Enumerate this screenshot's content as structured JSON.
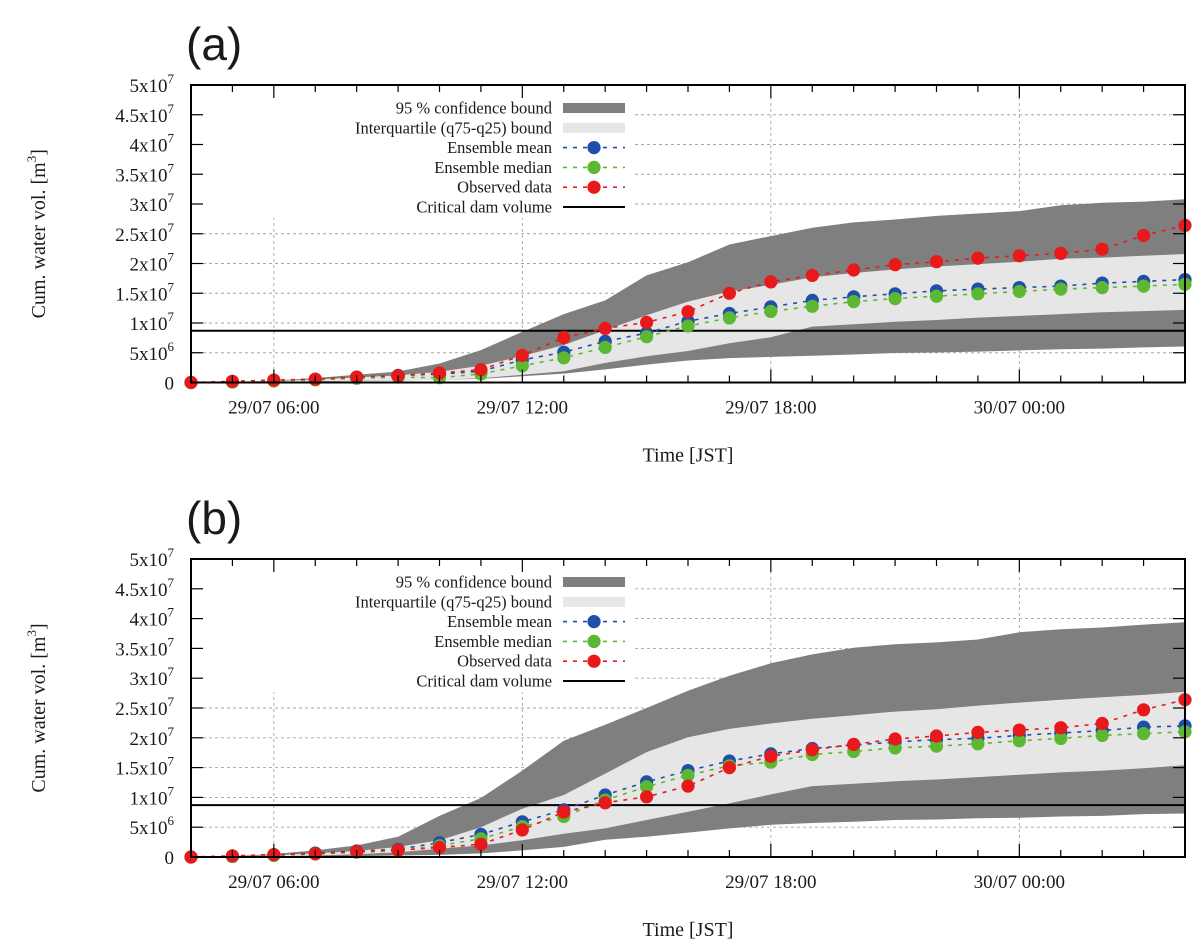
{
  "figure": {
    "panels": [
      "(a)",
      "(b)"
    ]
  },
  "chart_data": [
    {
      "type": "line",
      "panel_label": "(a)",
      "title": "",
      "xlabel": "Time [JST]",
      "ylabel": "Cum. water vol. [m^3]",
      "ylabel_base": "Cum. water vol. [m",
      "ylabel_sup": "3",
      "ylabel_end": "]",
      "x_start": "29/07 04:00",
      "x_step_hours": 1,
      "xlim_hours": [
        0,
        24
      ],
      "xticks": [
        {
          "hour": 2,
          "label": "29/07 06:00"
        },
        {
          "hour": 8,
          "label": "29/07 12:00"
        },
        {
          "hour": 14,
          "label": "29/07 18:00"
        },
        {
          "hour": 20,
          "label": "30/07 00:00"
        }
      ],
      "ylim": [
        0,
        50000000
      ],
      "yticks": [
        {
          "value": 0,
          "mant": "0",
          "exp": ""
        },
        {
          "value": 5000000,
          "mant": "5x10",
          "exp": "6"
        },
        {
          "value": 10000000,
          "mant": "1x10",
          "exp": "7"
        },
        {
          "value": 15000000,
          "mant": "1.5x10",
          "exp": "7"
        },
        {
          "value": 20000000,
          "mant": "2x10",
          "exp": "7"
        },
        {
          "value": 25000000,
          "mant": "2.5x10",
          "exp": "7"
        },
        {
          "value": 30000000,
          "mant": "3x10",
          "exp": "7"
        },
        {
          "value": 35000000,
          "mant": "3.5x10",
          "exp": "7"
        },
        {
          "value": 40000000,
          "mant": "4x10",
          "exp": "7"
        },
        {
          "value": 45000000,
          "mant": "4.5x10",
          "exp": "7"
        },
        {
          "value": 50000000,
          "mant": "5x10",
          "exp": "7"
        }
      ],
      "grid": true,
      "legend_position": "top-left",
      "legend": [
        {
          "label": "95 % confidence bound",
          "kind": "band95"
        },
        {
          "label": "Interquartile (q75-q25) bound",
          "kind": "bandIQR"
        },
        {
          "label": "Ensemble mean",
          "kind": "mean"
        },
        {
          "label": "Ensemble median",
          "kind": "median"
        },
        {
          "label": "Observed data",
          "kind": "observed"
        },
        {
          "label": "Critical dam volume",
          "kind": "critical"
        }
      ],
      "critical_volume": 8700000,
      "bands": {
        "ci95_upper": [
          0,
          100000,
          300000,
          750000,
          1300000,
          1850000,
          3200000,
          5450000,
          8500000,
          11500000,
          13800000,
          18000000,
          20200000,
          23200000,
          24600000,
          26000000,
          26900000,
          27400000,
          28000000,
          28400000,
          28800000,
          29800000,
          30200000,
          30400000,
          30800000
        ],
        "ci95_lower": [
          0,
          0,
          50000,
          150000,
          250000,
          350000,
          450000,
          600000,
          1050000,
          1500000,
          2200000,
          3000000,
          3700000,
          4100000,
          4300000,
          4500000,
          4700000,
          4950000,
          5050000,
          5200000,
          5400000,
          5600000,
          5700000,
          5900000,
          6050000
        ],
        "iqr_upper": [
          0,
          60000,
          250000,
          500000,
          850000,
          1200000,
          1800000,
          2800000,
          4450000,
          6300000,
          8800000,
          11300000,
          13600000,
          15300000,
          16400000,
          17700000,
          18400000,
          19000000,
          19500000,
          19900000,
          20300000,
          20800000,
          21000000,
          21300000,
          21600000
        ],
        "iqr_lower": [
          0,
          20000,
          100000,
          200000,
          300000,
          380000,
          450000,
          700000,
          1300000,
          1900000,
          3300000,
          4400000,
          5300000,
          6600000,
          7600000,
          9400000,
          9800000,
          10200000,
          10500000,
          10900000,
          11200000,
          11500000,
          11800000,
          12000000,
          12200000
        ]
      },
      "series": [
        {
          "name": "Ensemble mean",
          "color": "#1f4fa8",
          "values": [
            0,
            100000,
            300000,
            550000,
            900000,
            1200000,
            1400000,
            1900000,
            3800000,
            5100000,
            6900000,
            8300000,
            10300000,
            11600000,
            12700000,
            13800000,
            14400000,
            14900000,
            15400000,
            15700000,
            15950000,
            16200000,
            16700000,
            17000000,
            17300000
          ]
        },
        {
          "name": "Ensemble median",
          "color": "#5cb832",
          "values": [
            0,
            80000,
            250000,
            450000,
            700000,
            900000,
            800000,
            1450000,
            2800000,
            4150000,
            5900000,
            7700000,
            9500000,
            10850000,
            11950000,
            12800000,
            13600000,
            14100000,
            14500000,
            14900000,
            15300000,
            15700000,
            15950000,
            16200000,
            16500000
          ]
        },
        {
          "name": "Observed data",
          "color": "#e8191a",
          "values": [
            0,
            200000,
            400000,
            550000,
            900000,
            1150000,
            1600000,
            2150000,
            4550000,
            7550000,
            9100000,
            10100000,
            11900000,
            15000000,
            16900000,
            18000000,
            18900000,
            19800000,
            20300000,
            20900000,
            21300000,
            21700000,
            22400000,
            24700000,
            26400000
          ]
        }
      ]
    },
    {
      "type": "line",
      "panel_label": "(b)",
      "title": "",
      "xlabel": "Time [JST]",
      "ylabel": "Cum. water vol. [m^3]",
      "ylabel_base": "Cum. water vol. [m",
      "ylabel_sup": "3",
      "ylabel_end": "]",
      "x_start": "29/07 04:00",
      "x_step_hours": 1,
      "xlim_hours": [
        0,
        24
      ],
      "xticks": [
        {
          "hour": 2,
          "label": "29/07 06:00"
        },
        {
          "hour": 8,
          "label": "29/07 12:00"
        },
        {
          "hour": 14,
          "label": "29/07 18:00"
        },
        {
          "hour": 20,
          "label": "30/07 00:00"
        }
      ],
      "ylim": [
        0,
        50000000
      ],
      "yticks": [
        {
          "value": 0,
          "mant": "0",
          "exp": ""
        },
        {
          "value": 5000000,
          "mant": "5x10",
          "exp": "6"
        },
        {
          "value": 10000000,
          "mant": "1x10",
          "exp": "7"
        },
        {
          "value": 15000000,
          "mant": "1.5x10",
          "exp": "7"
        },
        {
          "value": 20000000,
          "mant": "2x10",
          "exp": "7"
        },
        {
          "value": 25000000,
          "mant": "2.5x10",
          "exp": "7"
        },
        {
          "value": 30000000,
          "mant": "3x10",
          "exp": "7"
        },
        {
          "value": 35000000,
          "mant": "3.5x10",
          "exp": "7"
        },
        {
          "value": 40000000,
          "mant": "4x10",
          "exp": "7"
        },
        {
          "value": 45000000,
          "mant": "4.5x10",
          "exp": "7"
        },
        {
          "value": 50000000,
          "mant": "5x10",
          "exp": "7"
        }
      ],
      "grid": true,
      "legend_position": "top-left",
      "legend": [
        {
          "label": "95 % confidence bound",
          "kind": "band95"
        },
        {
          "label": "Interquartile (q75-q25) bound",
          "kind": "bandIQR"
        },
        {
          "label": "Ensemble mean",
          "kind": "mean"
        },
        {
          "label": "Ensemble median",
          "kind": "median"
        },
        {
          "label": "Observed data",
          "kind": "observed"
        },
        {
          "label": "Critical dam volume",
          "kind": "critical"
        }
      ],
      "critical_volume": 8700000,
      "bands": {
        "ci95_upper": [
          0,
          150000,
          500000,
          1100000,
          1950000,
          3400000,
          6900000,
          9900000,
          14500000,
          19500000,
          22200000,
          25000000,
          27900000,
          30400000,
          32500000,
          34000000,
          35100000,
          35700000,
          36000000,
          36500000,
          37700000,
          38200000,
          38500000,
          39000000,
          39400000
        ],
        "ci95_lower": [
          0,
          0,
          50000,
          100000,
          150000,
          250000,
          350000,
          600000,
          1100000,
          1700000,
          2900000,
          3400000,
          4100000,
          4800000,
          5400000,
          5700000,
          5900000,
          6200000,
          6300000,
          6500000,
          6600000,
          6800000,
          6900000,
          7200000,
          7300000
        ],
        "iqr_upper": [
          0,
          80000,
          300000,
          600000,
          1000000,
          1700000,
          2800000,
          5000000,
          8100000,
          10400000,
          14000000,
          17600000,
          20100000,
          21500000,
          22400000,
          23200000,
          23800000,
          24400000,
          24800000,
          25400000,
          25900000,
          26400000,
          26800000,
          27200000,
          27700000
        ],
        "iqr_lower": [
          0,
          20000,
          100000,
          250000,
          450000,
          800000,
          1400000,
          1950000,
          2800000,
          3900000,
          4800000,
          6200000,
          7600000,
          9000000,
          10500000,
          11900000,
          12300000,
          12700000,
          13000000,
          13400000,
          13800000,
          14200000,
          14500000,
          14900000,
          15400000
        ]
      },
      "series": [
        {
          "name": "Ensemble mean",
          "color": "#1f4fa8",
          "values": [
            0,
            100000,
            350000,
            650000,
            1000000,
            1300000,
            2400000,
            3800000,
            5900000,
            7900000,
            10400000,
            12600000,
            14500000,
            16100000,
            17300000,
            18200000,
            18800000,
            19300000,
            19700000,
            19900000,
            20400000,
            20800000,
            21200000,
            21800000,
            22000000
          ]
        },
        {
          "name": "Ensemble median",
          "color": "#5cb832",
          "values": [
            0,
            80000,
            250000,
            500000,
            800000,
            1000000,
            1900000,
            3050000,
            5100000,
            6800000,
            9550000,
            11800000,
            13700000,
            15300000,
            15900000,
            17200000,
            17700000,
            18300000,
            18600000,
            19000000,
            19500000,
            19900000,
            20400000,
            20700000,
            21000000
          ]
        },
        {
          "name": "Observed data",
          "color": "#e8191a",
          "values": [
            0,
            200000,
            400000,
            550000,
            900000,
            1150000,
            1600000,
            2150000,
            4550000,
            7550000,
            9100000,
            10100000,
            11900000,
            15000000,
            16900000,
            18000000,
            18900000,
            19800000,
            20300000,
            20900000,
            21300000,
            21700000,
            22400000,
            24700000,
            26400000
          ]
        }
      ]
    }
  ],
  "colors": {
    "band95": "#7f7f7f",
    "bandIQR": "#e6e6e6",
    "mean": "#1f4fa8",
    "median": "#5cb832",
    "observed": "#e8191a",
    "critical": "#000000"
  }
}
